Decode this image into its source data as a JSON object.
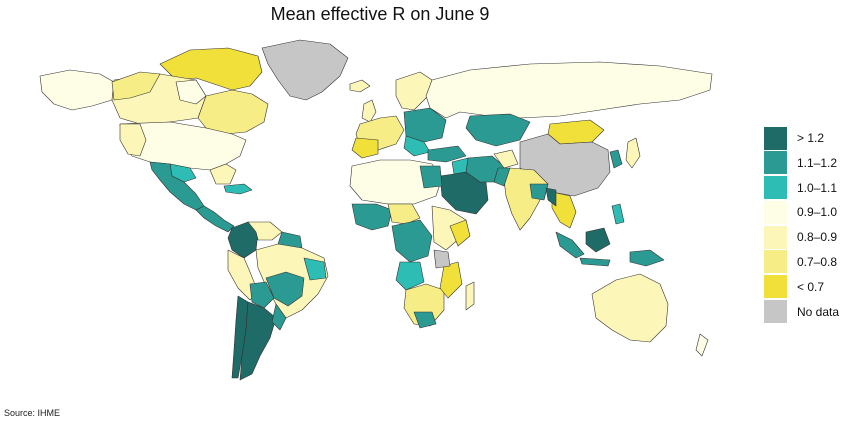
{
  "title": "Mean effective R on June 9",
  "source": "Source: IHME",
  "legend": {
    "items": [
      {
        "label": "> 1.2",
        "color": "#1f6b67"
      },
      {
        "label": "1.1–1.2",
        "color": "#2b9a93"
      },
      {
        "label": "1.0–1.1",
        "color": "#2dbdb4"
      },
      {
        "label": "0.9–1.0",
        "color": "#fefee6"
      },
      {
        "label": "0.8–0.9",
        "color": "#fcf6b8"
      },
      {
        "label": "0.7–0.8",
        "color": "#f7ed86"
      },
      {
        "label": "< 0.7",
        "color": "#f1e03a"
      },
      {
        "label": "No data",
        "color": "#c6c6c6"
      }
    ]
  },
  "colors": {
    "gt_1_2": "#1f6b67",
    "r_1_1_1_2": "#2b9a93",
    "r_1_0_1_1": "#2dbdb4",
    "r_0_9_1_0": "#fefee6",
    "r_0_8_0_9": "#fcf6b8",
    "r_0_7_0_8": "#f7ed86",
    "lt_0_7": "#f1e03a",
    "no_data": "#c6c6c6",
    "border": "#333333"
  }
}
